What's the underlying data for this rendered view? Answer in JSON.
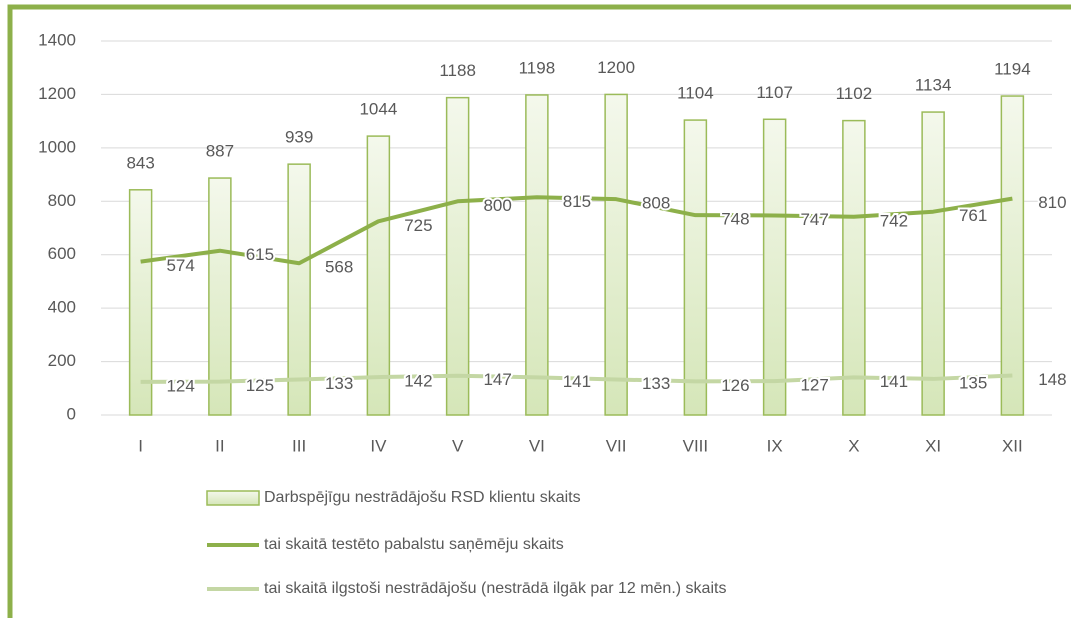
{
  "chart_data": {
    "type": "bar_line",
    "categories": [
      "I",
      "II",
      "III",
      "IV",
      "V",
      "VI",
      "VII",
      "VIII",
      "IX",
      "X",
      "XI",
      "XII"
    ],
    "series": [
      {
        "name": "Darbspējīgu nestrādājošu RSD klientu skaits",
        "type": "bar",
        "color": "#9bbb59",
        "values": [
          843,
          887,
          939,
          1044,
          1188,
          1198,
          1200,
          1104,
          1107,
          1102,
          1134,
          1194
        ]
      },
      {
        "name": "tai skaitā testēto pabalstu saņēmēju skaits",
        "type": "line",
        "color": "#8db04a",
        "values": [
          574,
          615,
          568,
          725,
          800,
          815,
          808,
          748,
          747,
          742,
          761,
          810
        ]
      },
      {
        "name": "tai skaitā ilgstoši nestrādājošu (nestrādā ilgāk par 12 mēn.) skaits",
        "type": "line",
        "color": "#c4d7a4",
        "values": [
          124,
          125,
          133,
          142,
          147,
          141,
          133,
          126,
          127,
          141,
          135,
          148
        ]
      }
    ],
    "ylim": [
      0,
      1400
    ],
    "yticks": [
      0,
      200,
      400,
      600,
      800,
      1000,
      1200,
      1400
    ],
    "grid": true
  }
}
